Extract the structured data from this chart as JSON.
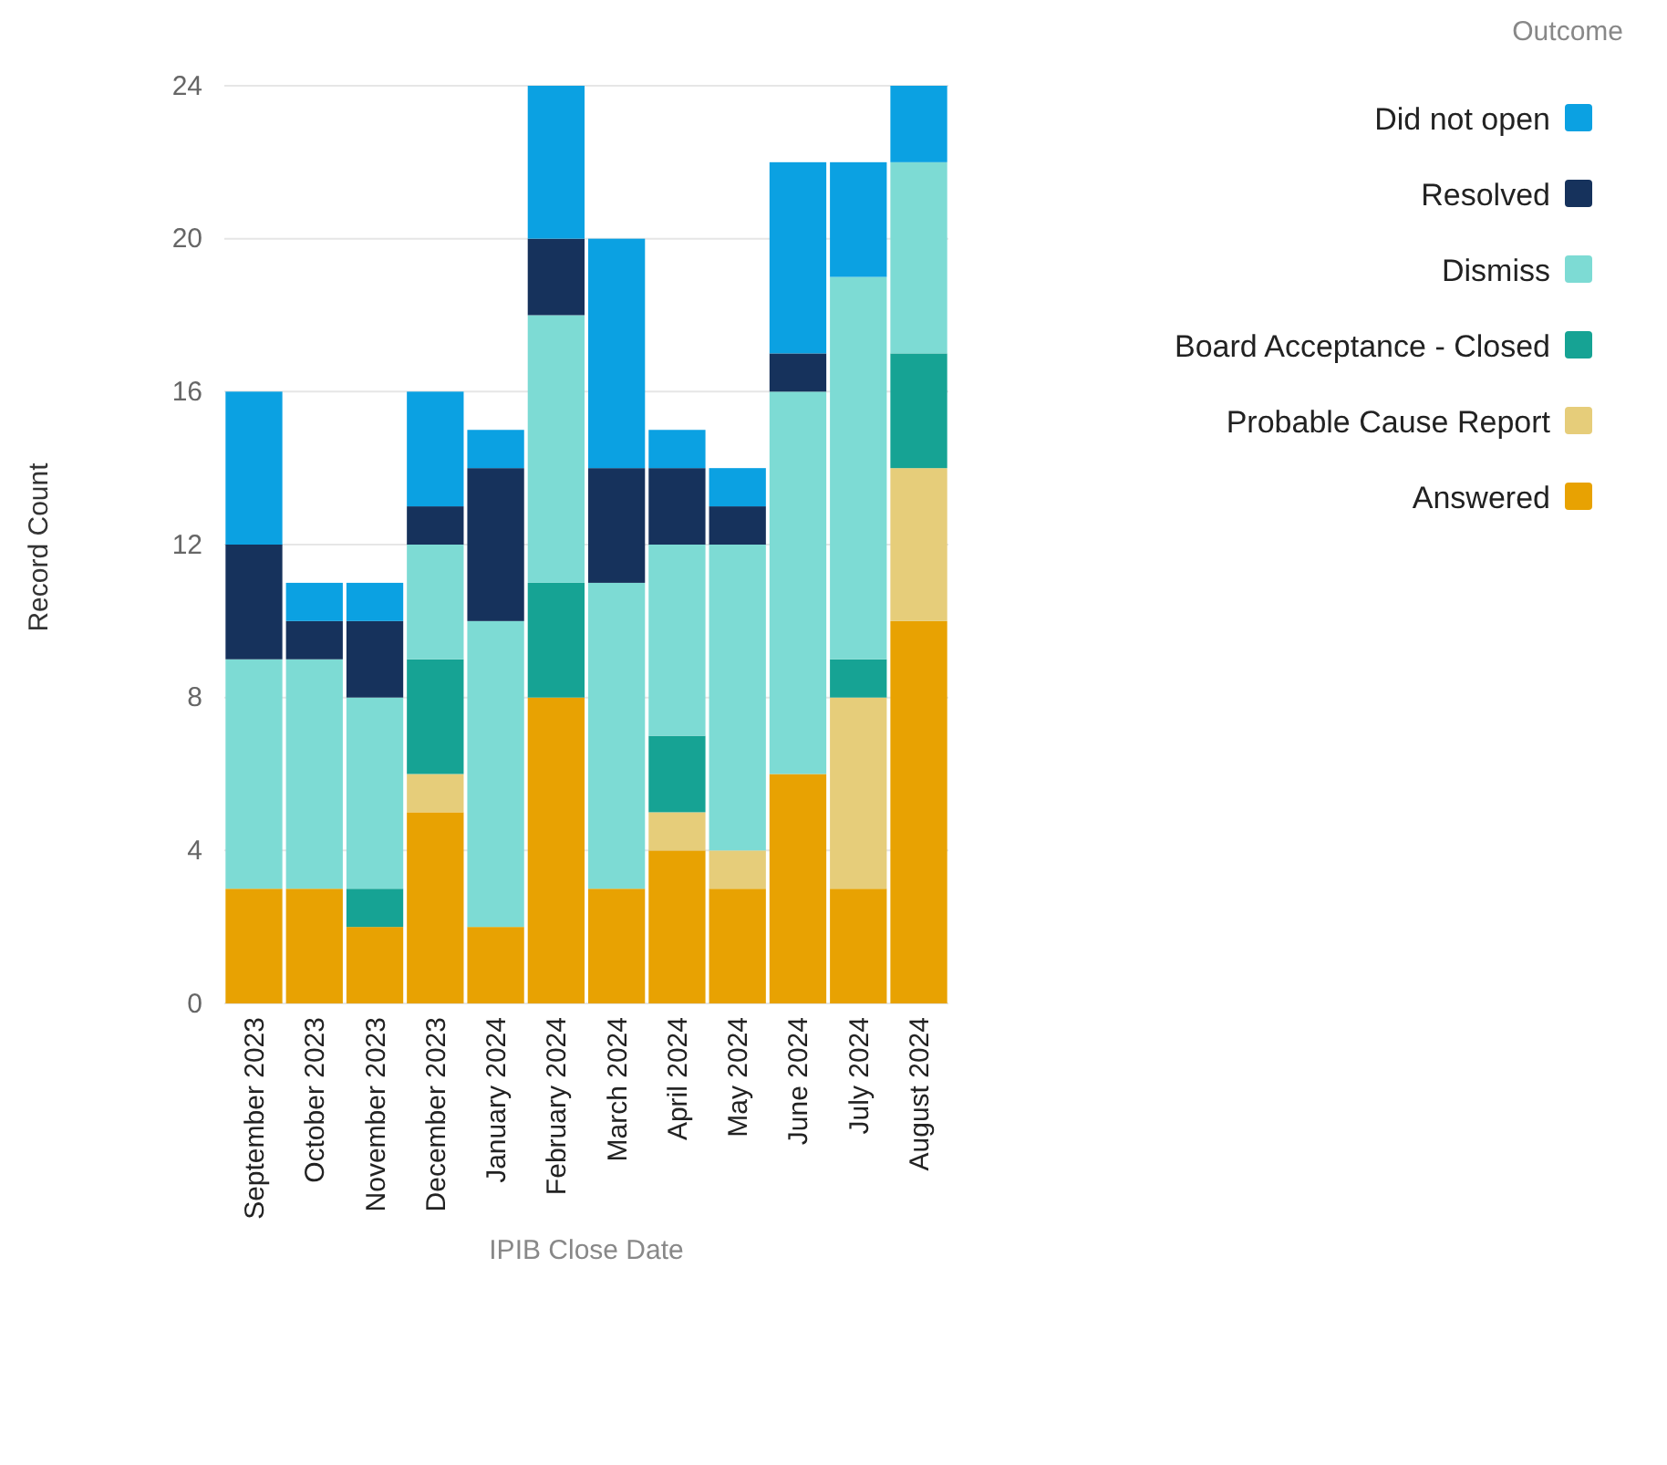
{
  "chart_data": {
    "type": "bar",
    "stacked": true,
    "categories": [
      "September 2023",
      "October 2023",
      "November 2023",
      "December 2023",
      "January 2024",
      "February 2024",
      "March 2024",
      "April 2024",
      "May 2024",
      "June 2024",
      "July 2024",
      "August 2024"
    ],
    "series": [
      {
        "name": "Answered",
        "color": "#e8a202",
        "values": [
          3,
          3,
          2,
          5,
          2,
          8,
          3,
          4,
          3,
          6,
          3,
          10
        ]
      },
      {
        "name": "Probable Cause Report",
        "color": "#e6cd7a",
        "values": [
          0,
          0,
          0,
          1,
          0,
          0,
          0,
          1,
          1,
          0,
          5,
          4
        ]
      },
      {
        "name": "Board Acceptance - Closed",
        "color": "#16a394",
        "values": [
          0,
          0,
          1,
          3,
          0,
          3,
          0,
          2,
          0,
          0,
          1,
          3
        ]
      },
      {
        "name": "Dismiss",
        "color": "#7ddbd4",
        "values": [
          6,
          6,
          5,
          3,
          8,
          7,
          8,
          5,
          8,
          10,
          10,
          5
        ]
      },
      {
        "name": "Resolved",
        "color": "#16325c",
        "values": [
          3,
          1,
          2,
          1,
          4,
          2,
          3,
          2,
          1,
          1,
          0,
          0
        ]
      },
      {
        "name": "Did not open",
        "color": "#0ba1e2",
        "values": [
          4,
          1,
          1,
          3,
          1,
          4,
          6,
          1,
          1,
          5,
          3,
          2
        ]
      }
    ],
    "ylim": [
      0,
      24
    ],
    "yticks": [
      0,
      4,
      8,
      12,
      16,
      20,
      24
    ],
    "grid": "y",
    "xlabel": "IPIB Close Date",
    "ylabel": "Record Count",
    "legend": "top right",
    "legend_title": "Outcome"
  }
}
